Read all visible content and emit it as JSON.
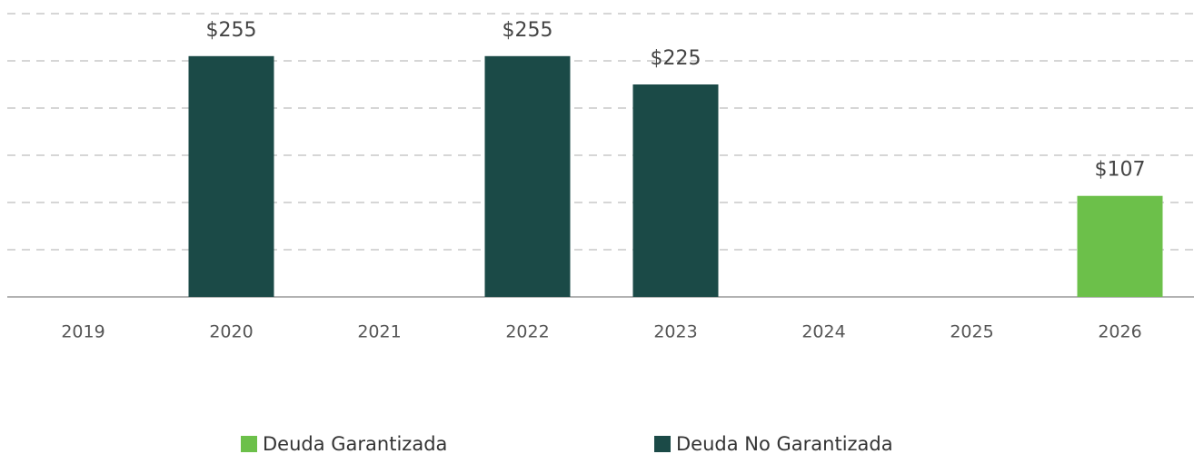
{
  "chart_data": {
    "type": "bar",
    "categories": [
      "2019",
      "2020",
      "2021",
      "2022",
      "2023",
      "2024",
      "2025",
      "2026"
    ],
    "series": [
      {
        "name": "Deuda Garantizada",
        "color": "#6cc04a",
        "values": [
          null,
          null,
          null,
          null,
          null,
          null,
          null,
          107
        ],
        "value_labels": [
          null,
          null,
          null,
          null,
          null,
          null,
          null,
          "$107"
        ]
      },
      {
        "name": "Deuda No Garantizada",
        "color": "#1b4a47",
        "values": [
          null,
          255,
          null,
          255,
          225,
          null,
          null,
          null
        ],
        "value_labels": [
          null,
          "$255",
          null,
          "$255",
          "$225",
          null,
          null,
          null
        ]
      }
    ],
    "ylim": [
      0,
      300
    ],
    "yticks": [
      0,
      50,
      100,
      150,
      200,
      250,
      300
    ],
    "grid": true
  }
}
